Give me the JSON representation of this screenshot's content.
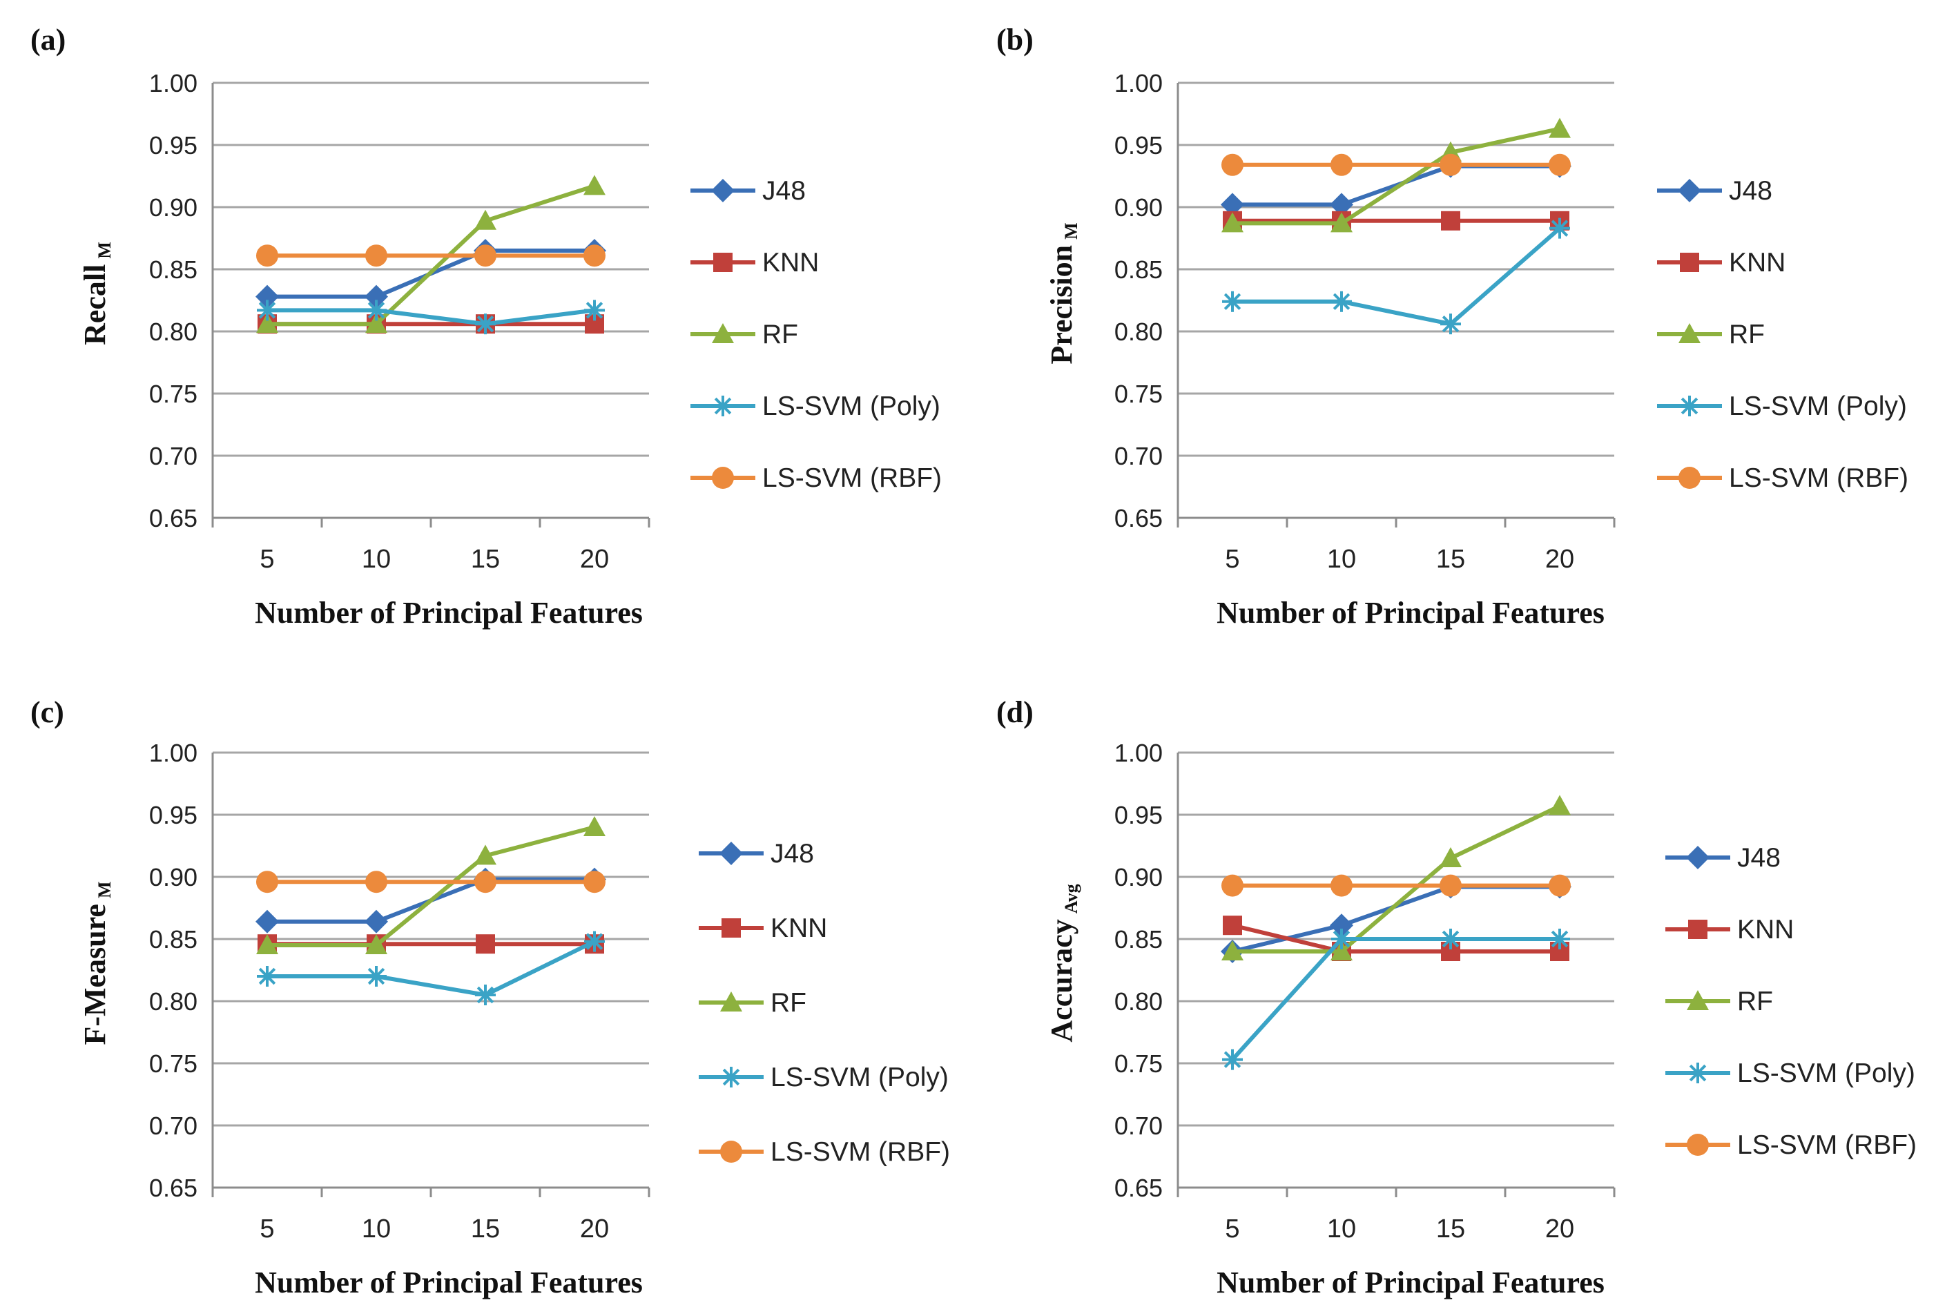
{
  "figure": {
    "series_styles": [
      {
        "name": "J48",
        "color": "#3a6fb6",
        "marker": "diamond"
      },
      {
        "name": "KNN",
        "color": "#c0403a",
        "marker": "square"
      },
      {
        "name": "RF",
        "color": "#8db13e",
        "marker": "triangle"
      },
      {
        "name": "LS-SVM (Poly)",
        "color": "#3aa3c6",
        "marker": "star"
      },
      {
        "name": "LS-SVM (RBF)",
        "color": "#ec8a3c",
        "marker": "circle"
      }
    ]
  },
  "chart_data": [
    {
      "panel": "(a)",
      "type": "line",
      "title": "",
      "xlabel": "Number of Principal Features",
      "ylabel": "Recall",
      "ylabel_sub": "M",
      "categories": [
        "5",
        "10",
        "15",
        "20"
      ],
      "ylim": [
        0.65,
        1.0
      ],
      "yticks": [
        "0.65",
        "0.70",
        "0.75",
        "0.80",
        "0.85",
        "0.90",
        "0.95",
        "1.00"
      ],
      "grid": true,
      "legend": "right",
      "series": [
        {
          "name": "J48",
          "values": [
            0.828,
            0.828,
            0.865,
            0.865
          ]
        },
        {
          "name": "KNN",
          "values": [
            0.806,
            0.806,
            0.806,
            0.806
          ]
        },
        {
          "name": "RF",
          "values": [
            0.806,
            0.806,
            0.889,
            0.917
          ]
        },
        {
          "name": "LS-SVM (Poly)",
          "values": [
            0.817,
            0.817,
            0.806,
            0.817
          ]
        },
        {
          "name": "LS-SVM (RBF)",
          "values": [
            0.861,
            0.861,
            0.861,
            0.861
          ]
        }
      ]
    },
    {
      "panel": "(b)",
      "type": "line",
      "title": "",
      "xlabel": "Number of Principal Features",
      "ylabel": "Precision",
      "ylabel_sub": "M",
      "categories": [
        "5",
        "10",
        "15",
        "20"
      ],
      "ylim": [
        0.65,
        1.0
      ],
      "yticks": [
        "0.65",
        "0.70",
        "0.75",
        "0.80",
        "0.85",
        "0.90",
        "0.95",
        "1.00"
      ],
      "grid": true,
      "legend": "right",
      "series": [
        {
          "name": "J48",
          "values": [
            0.902,
            0.902,
            0.933,
            0.933
          ]
        },
        {
          "name": "KNN",
          "values": [
            0.889,
            0.889,
            0.889,
            0.889
          ]
        },
        {
          "name": "RF",
          "values": [
            0.887,
            0.887,
            0.944,
            0.963
          ]
        },
        {
          "name": "LS-SVM (Poly)",
          "values": [
            0.824,
            0.824,
            0.806,
            0.883
          ]
        },
        {
          "name": "LS-SVM (RBF)",
          "values": [
            0.934,
            0.934,
            0.934,
            0.934
          ]
        }
      ]
    },
    {
      "panel": "(c)",
      "type": "line",
      "title": "",
      "xlabel": "Number of Principal Features",
      "ylabel": "F-Measure",
      "ylabel_sub": "M",
      "categories": [
        "5",
        "10",
        "15",
        "20"
      ],
      "ylim": [
        0.65,
        1.0
      ],
      "yticks": [
        "0.65",
        "0.70",
        "0.75",
        "0.80",
        "0.85",
        "0.90",
        "0.95",
        "1.00"
      ],
      "grid": true,
      "legend": "right",
      "series": [
        {
          "name": "J48",
          "values": [
            0.864,
            0.864,
            0.898,
            0.898
          ]
        },
        {
          "name": "KNN",
          "values": [
            0.846,
            0.846,
            0.846,
            0.846
          ]
        },
        {
          "name": "RF",
          "values": [
            0.845,
            0.845,
            0.917,
            0.94
          ]
        },
        {
          "name": "LS-SVM (Poly)",
          "values": [
            0.82,
            0.82,
            0.805,
            0.848
          ]
        },
        {
          "name": "LS-SVM (RBF)",
          "values": [
            0.896,
            0.896,
            0.896,
            0.896
          ]
        }
      ]
    },
    {
      "panel": "(d)",
      "type": "line",
      "title": "",
      "xlabel": "Number of Principal Features",
      "ylabel": "Accuracy",
      "ylabel_sub": "Avg",
      "categories": [
        "5",
        "10",
        "15",
        "20"
      ],
      "ylim": [
        0.65,
        1.0
      ],
      "yticks": [
        "0.65",
        "0.70",
        "0.75",
        "0.80",
        "0.85",
        "0.90",
        "0.95",
        "1.00"
      ],
      "grid": true,
      "legend": "right",
      "series": [
        {
          "name": "J48",
          "values": [
            0.84,
            0.861,
            0.892,
            0.892
          ]
        },
        {
          "name": "KNN",
          "values": [
            0.861,
            0.84,
            0.84,
            0.84
          ]
        },
        {
          "name": "RF",
          "values": [
            0.84,
            0.84,
            0.915,
            0.957
          ]
        },
        {
          "name": "LS-SVM (Poly)",
          "values": [
            0.753,
            0.85,
            0.85,
            0.85
          ]
        },
        {
          "name": "LS-SVM (RBF)",
          "values": [
            0.893,
            0.893,
            0.893,
            0.893
          ]
        }
      ]
    }
  ]
}
